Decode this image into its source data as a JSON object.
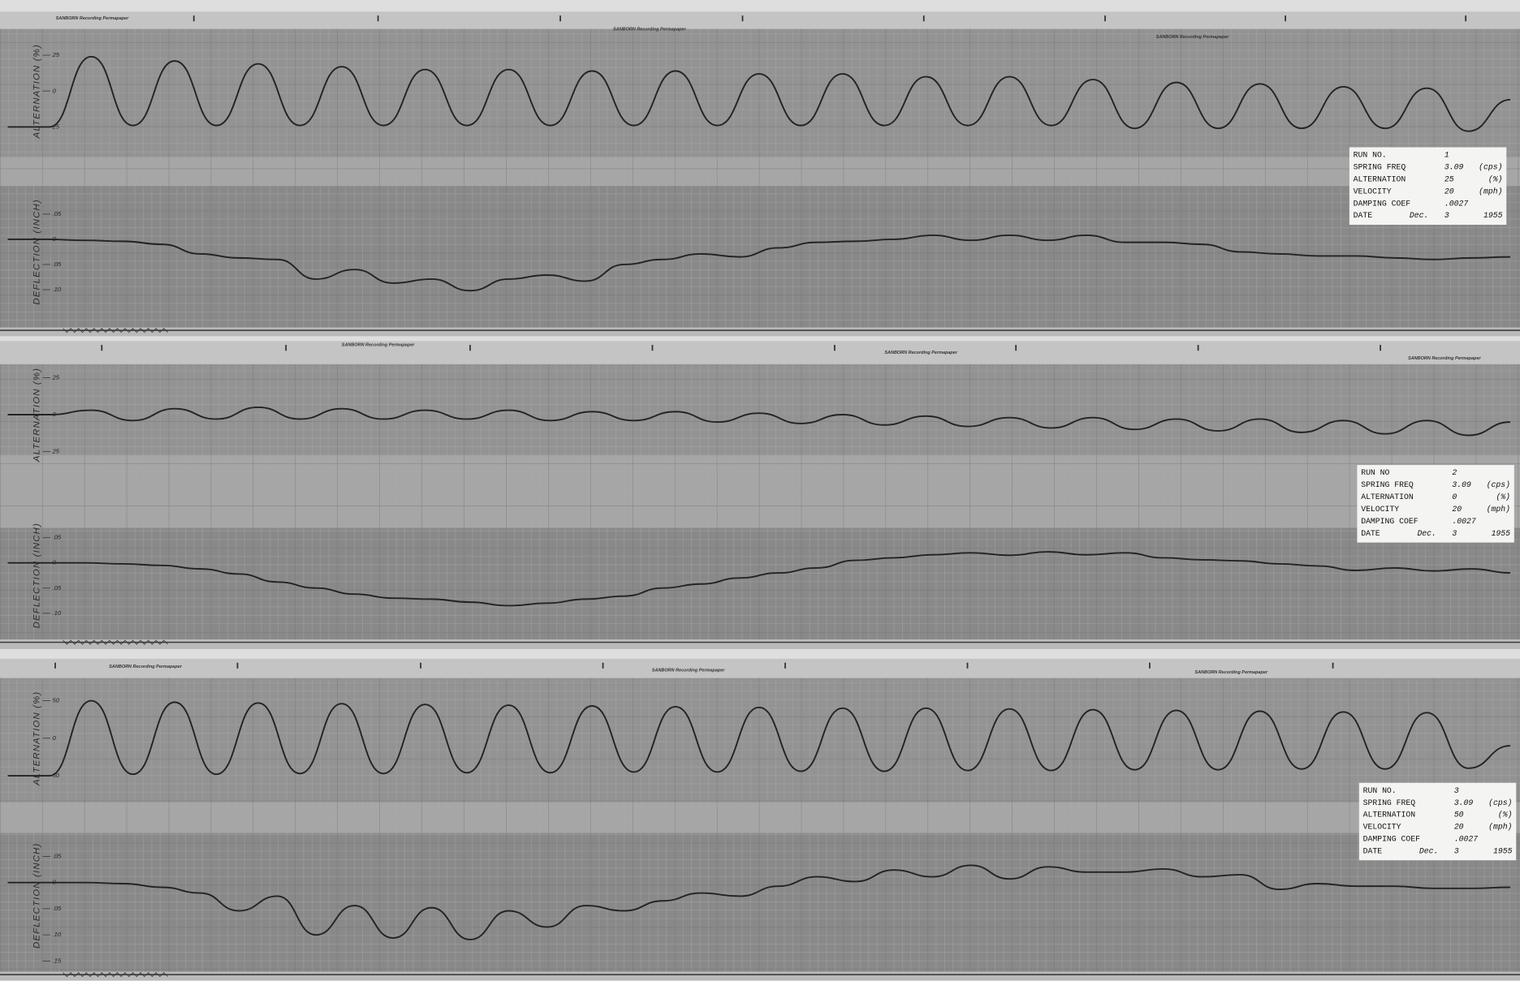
{
  "paper_brand": "SANBORN Recording Permapaper",
  "chart_data": [
    {
      "type": "line",
      "ylabel": "ALTERNATION (%)",
      "color": "#232323",
      "ylim": [
        -40,
        40
      ],
      "yticks": [
        25,
        0,
        {
          "value": -25,
          "label": "25"
        }
      ],
      "values": [
        -25,
        -25,
        24,
        -24,
        21,
        -24,
        19,
        -24,
        17,
        -24,
        15,
        -24,
        15,
        -24,
        14,
        -24,
        14,
        -24,
        12,
        -24,
        12,
        -24,
        10,
        -24,
        10,
        -24,
        8,
        -26,
        6,
        -26,
        5,
        -26,
        3,
        -26,
        2,
        -28,
        -6
      ]
    },
    {
      "type": "line",
      "ylabel": "DEFLECTION (INCH)",
      "color": "#232323",
      "ylim": [
        -0.15,
        0.1
      ],
      "yticks": [
        {
          "value": 0.05,
          "label": ".05"
        },
        0,
        {
          "value": -0.05,
          "label": ".05"
        },
        {
          "value": -0.1,
          "label": ".10"
        }
      ],
      "values": [
        0,
        0,
        -0.002,
        -0.004,
        -0.01,
        -0.029,
        -0.037,
        -0.04,
        -0.079,
        -0.06,
        -0.087,
        -0.079,
        -0.102,
        -0.079,
        -0.071,
        -0.083,
        -0.05,
        -0.04,
        -0.029,
        -0.035,
        -0.017,
        -0.006,
        -0.004,
        0,
        0.008,
        -0.002,
        0.008,
        -0.002,
        0.008,
        -0.006,
        -0.006,
        -0.01,
        -0.025,
        -0.029,
        -0.033,
        -0.033,
        -0.037,
        -0.04,
        -0.037,
        -0.035
      ]
    },
    {
      "type": "line",
      "ylabel": "ALTERNATION (%)",
      "color": "#232323",
      "ylim": [
        -40,
        40
      ],
      "yticks": [
        25,
        0,
        {
          "value": -25,
          "label": "25"
        }
      ],
      "values": [
        0,
        0,
        3,
        -4,
        4,
        -3,
        5,
        -3,
        4,
        -3,
        3,
        -3,
        3,
        -4,
        2,
        -4,
        2,
        -5,
        1,
        -6,
        0,
        -7,
        -1,
        -8,
        -2,
        -9,
        -2,
        -10,
        -3,
        -11,
        -3,
        -12,
        -4,
        -13,
        -4,
        -14,
        -5
      ]
    },
    {
      "type": "line",
      "ylabel": "DEFLECTION (INCH)",
      "color": "#232323",
      "ylim": [
        -0.15,
        0.1
      ],
      "yticks": [
        {
          "value": 0.05,
          "label": ".05"
        },
        0,
        {
          "value": -0.05,
          "label": ".05"
        },
        {
          "value": -0.1,
          "label": ".10"
        }
      ],
      "values": [
        0,
        0,
        0,
        -0.002,
        -0.005,
        -0.012,
        -0.022,
        -0.038,
        -0.05,
        -0.062,
        -0.07,
        -0.072,
        -0.078,
        -0.085,
        -0.08,
        -0.072,
        -0.066,
        -0.05,
        -0.042,
        -0.03,
        -0.02,
        -0.01,
        0.005,
        0.01,
        0.016,
        0.02,
        0.015,
        0.022,
        0.016,
        0.02,
        0.01,
        0.006,
        0.004,
        -0.002,
        -0.006,
        -0.015,
        -0.01,
        -0.016,
        -0.012,
        -0.02
      ]
    },
    {
      "type": "line",
      "ylabel": "ALTERNATION (%)",
      "color": "#232323",
      "ylim": [
        -80,
        80
      ],
      "yticks": [
        50,
        0,
        {
          "value": -50,
          "label": "50"
        }
      ],
      "values": [
        -50,
        -50,
        50,
        -48,
        48,
        -48,
        47,
        -47,
        46,
        -47,
        45,
        -46,
        44,
        -46,
        43,
        -45,
        42,
        -45,
        41,
        -44,
        40,
        -44,
        40,
        -43,
        39,
        -43,
        38,
        -42,
        37,
        -42,
        36,
        -41,
        35,
        -41,
        34,
        -40,
        -10
      ]
    },
    {
      "type": "line",
      "ylabel": "DEFLECTION (INCH)",
      "color": "#232323",
      "ylim": [
        -0.15,
        0.1
      ],
      "yticks": [
        {
          "value": 0.05,
          "label": ".05"
        },
        0,
        {
          "value": -0.05,
          "label": ".05"
        },
        {
          "value": -0.1,
          "label": ".10"
        },
        {
          "value": -0.15,
          "label": ".15"
        }
      ],
      "values": [
        0,
        0,
        0,
        -0.002,
        -0.009,
        -0.02,
        -0.054,
        -0.026,
        -0.1,
        -0.044,
        -0.106,
        -0.048,
        -0.109,
        -0.054,
        -0.085,
        -0.044,
        -0.054,
        -0.035,
        -0.02,
        -0.026,
        -0.007,
        0.011,
        0.002,
        0.024,
        0.011,
        0.033,
        0.007,
        0.03,
        0.02,
        0.02,
        0.026,
        0.011,
        0.015,
        -0.013,
        -0.002,
        -0.007,
        -0.007,
        -0.011,
        -0.011,
        -0.009
      ]
    }
  ],
  "run_cards": [
    [
      [
        "RUN NO.",
        "1"
      ],
      [
        "SPRING FREQ",
        "3.09",
        "(cps)"
      ],
      [
        "ALTERNATION",
        "25",
        "(%)"
      ],
      [
        "VELOCITY",
        "20",
        "(mph)"
      ],
      [
        "DAMPING COEF",
        ".0027"
      ],
      [
        "DATE",
        "Dec.",
        "3",
        "1955"
      ]
    ],
    [
      [
        "RUN NO",
        "2"
      ],
      [
        "SPRING FREQ",
        "3.09",
        "(cps)"
      ],
      [
        "ALTERNATION",
        "0",
        "(%)"
      ],
      [
        "VELOCITY",
        "20",
        "(mph)"
      ],
      [
        "DAMPING COEF",
        ".0027"
      ],
      [
        "DATE",
        "Dec.",
        "3",
        "1955"
      ]
    ],
    [
      [
        "RUN NO.",
        "3"
      ],
      [
        "SPRING FREQ",
        "3.09",
        "(cps)"
      ],
      [
        "ALTERNATION",
        "50",
        "(%)"
      ],
      [
        "VELOCITY",
        "20",
        "(mph)"
      ],
      [
        "DAMPING COEF",
        ".0027"
      ],
      [
        "DATE",
        "Dec.",
        "3",
        "1955"
      ]
    ]
  ]
}
